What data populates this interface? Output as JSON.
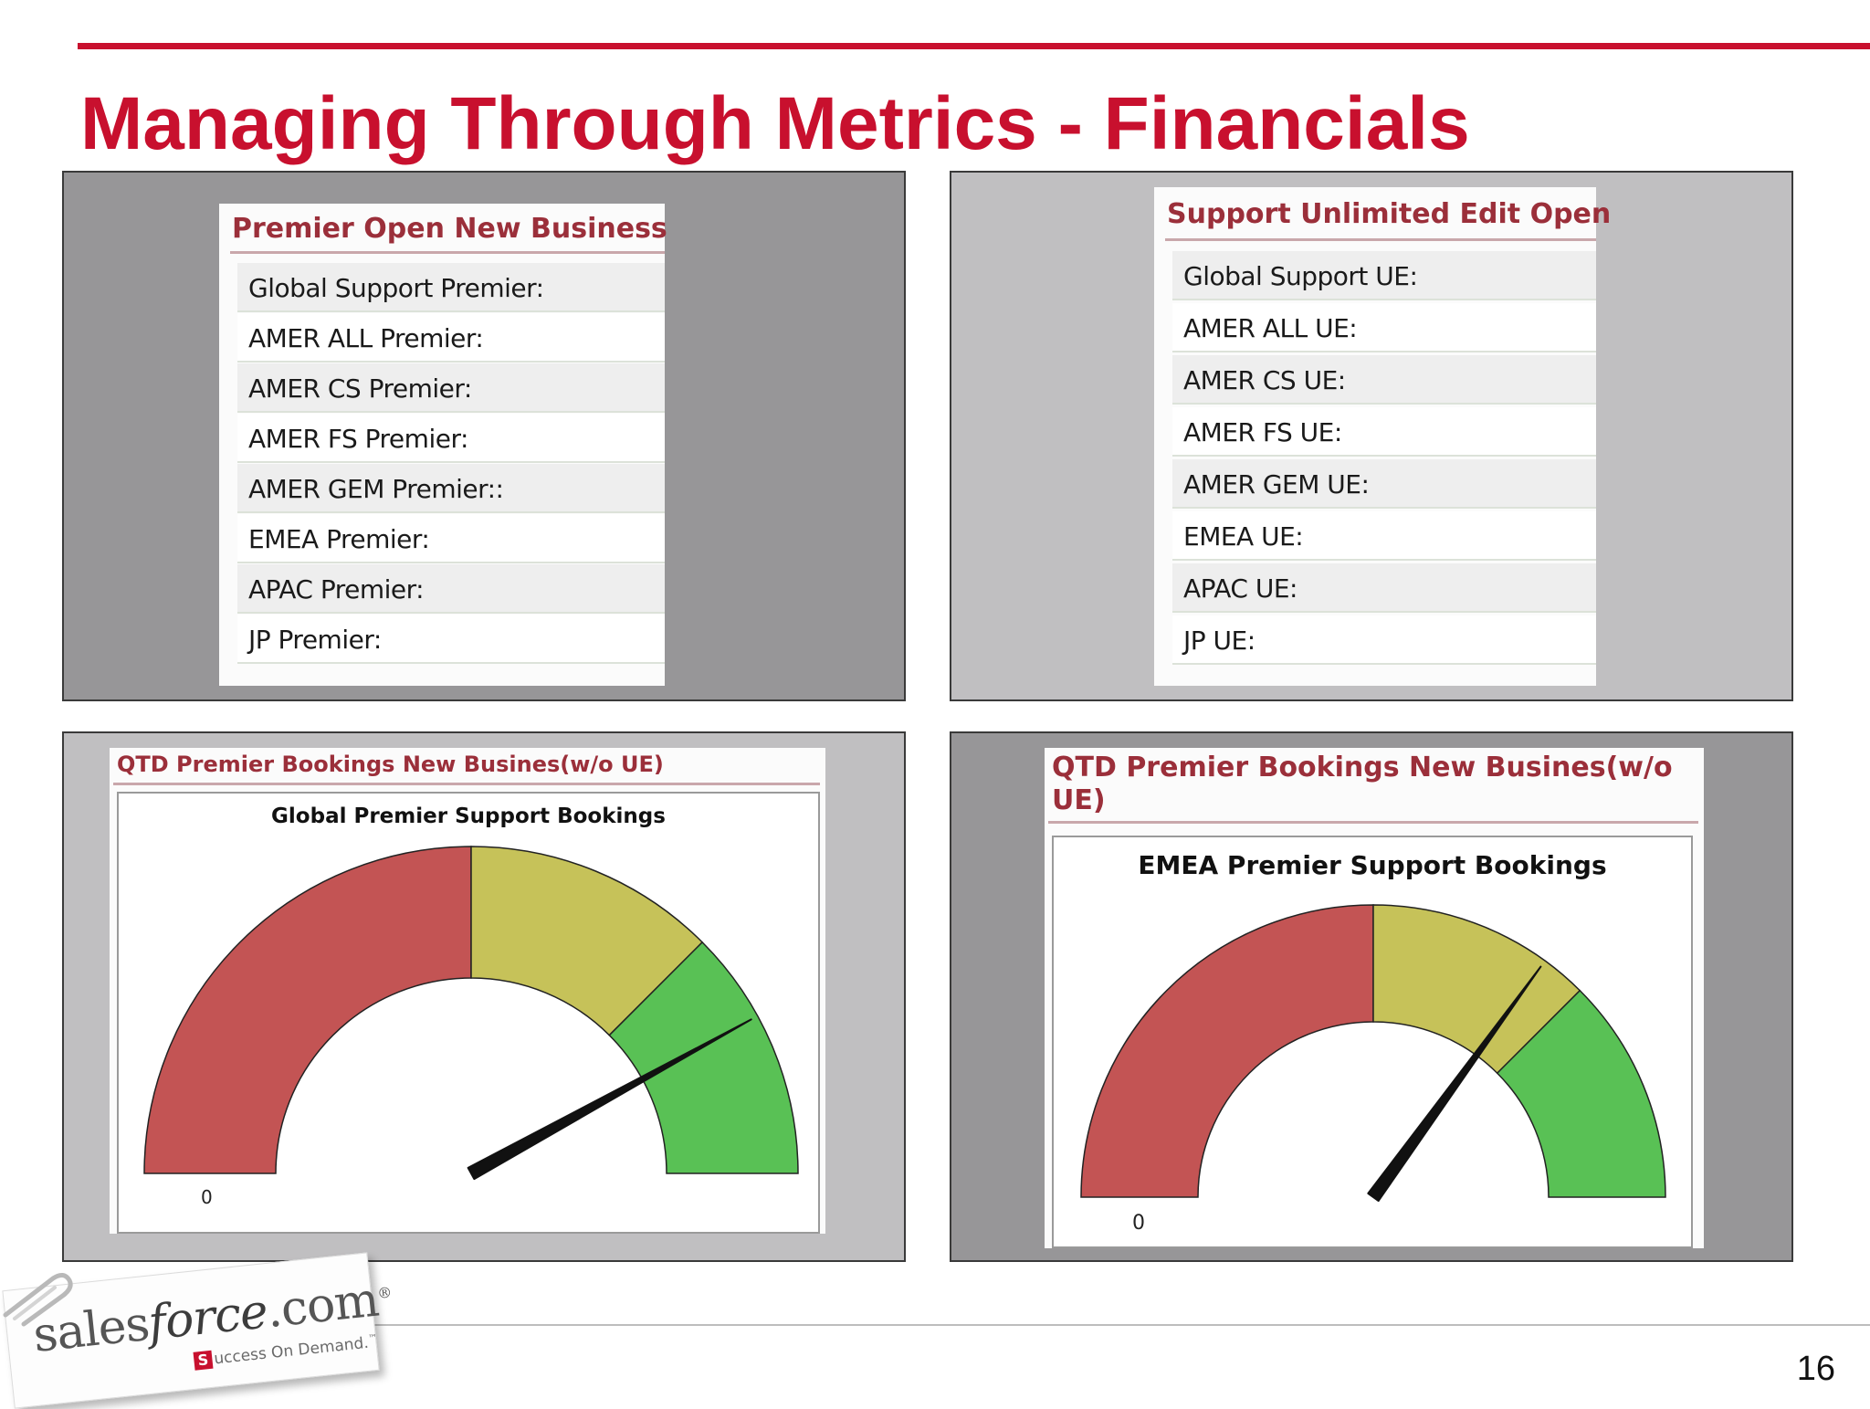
{
  "slide": {
    "title": "Managing Through Metrics - Financials",
    "page_number": "16"
  },
  "premier_card": {
    "title": "Premier Open New Business",
    "rows": [
      "Global Support Premier:",
      "AMER ALL Premier:",
      "AMER CS Premier:",
      "AMER FS Premier:",
      "AMER GEM Premier::",
      "EMEA Premier:",
      "APAC Premier:",
      "JP Premier:"
    ]
  },
  "ue_card": {
    "title": "Support Unlimited Edit Open",
    "rows": [
      "Global Support UE:",
      "AMER ALL UE:",
      "AMER CS UE:",
      "AMER FS UE:",
      "AMER GEM UE:",
      "EMEA UE:",
      "APAC UE:",
      "JP UE:"
    ]
  },
  "gauge_global": {
    "card_title": "QTD Premier Bookings New Busines(w/o UE)",
    "chart_title": "Global Premier Support Bookings",
    "min_label": "0"
  },
  "gauge_emea": {
    "card_title_line1": "QTD Premier Bookings New Busines(w/o",
    "card_title_line2": "UE)",
    "chart_title": "EMEA Premier Support Bookings",
    "min_label": "0"
  },
  "chart_data": [
    {
      "type": "gauge",
      "title": "Global Premier Support Bookings",
      "min": 0,
      "max": 100,
      "bands": [
        {
          "from": 0,
          "to": 50,
          "color": "#c35454"
        },
        {
          "from": 50,
          "to": 75,
          "color": "#c6c259"
        },
        {
          "from": 75,
          "to": 100,
          "color": "#59c155"
        }
      ],
      "value": 84,
      "needle_color": "#111111"
    },
    {
      "type": "gauge",
      "title": "EMEA Premier Support Bookings",
      "min": 0,
      "max": 100,
      "bands": [
        {
          "from": 0,
          "to": 50,
          "color": "#c35454"
        },
        {
          "from": 50,
          "to": 75,
          "color": "#c6c259"
        },
        {
          "from": 75,
          "to": 100,
          "color": "#59c155"
        }
      ],
      "value": 70,
      "needle_color": "#111111"
    }
  ],
  "logo": {
    "brand_sales": "sales",
    "brand_force": "force",
    "brand_com": ".com",
    "brand_mark": "®",
    "tagline_initial": "S",
    "tagline_rest": "uccess On Demand.",
    "tagline_mark": "™"
  },
  "colors": {
    "accent_red": "#c8102e",
    "card_title": "#9b2f3a"
  }
}
